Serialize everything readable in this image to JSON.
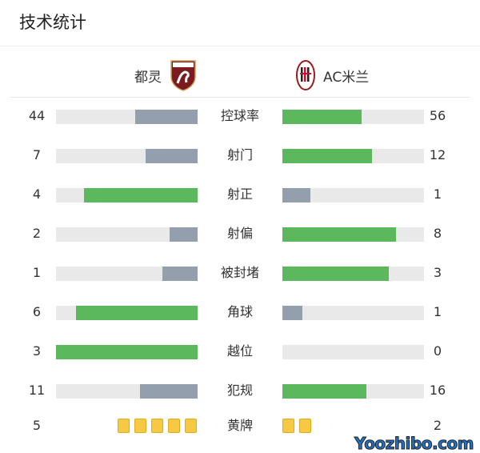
{
  "title": "技术统计",
  "home": {
    "name": "都灵",
    "logo": "TORINO"
  },
  "away": {
    "name": "AC米兰"
  },
  "colors": {
    "win": "#5cb85c",
    "lose": "#949fae",
    "track": "#e9e9e9",
    "card": "#f7c842"
  },
  "stats": [
    {
      "label": "控球率",
      "home": 44,
      "away": 56
    },
    {
      "label": "射门",
      "home": 7,
      "away": 12
    },
    {
      "label": "射正",
      "home": 4,
      "away": 1
    },
    {
      "label": "射偏",
      "home": 2,
      "away": 8
    },
    {
      "label": "被封堵",
      "home": 1,
      "away": 3
    },
    {
      "label": "角球",
      "home": 6,
      "away": 1
    },
    {
      "label": "越位",
      "home": 3,
      "away": 0
    },
    {
      "label": "犯规",
      "home": 11,
      "away": 16
    }
  ],
  "yellow": {
    "label": "黄牌",
    "home": 5,
    "away": 2
  },
  "watermark": "Yoozhibo.com"
}
